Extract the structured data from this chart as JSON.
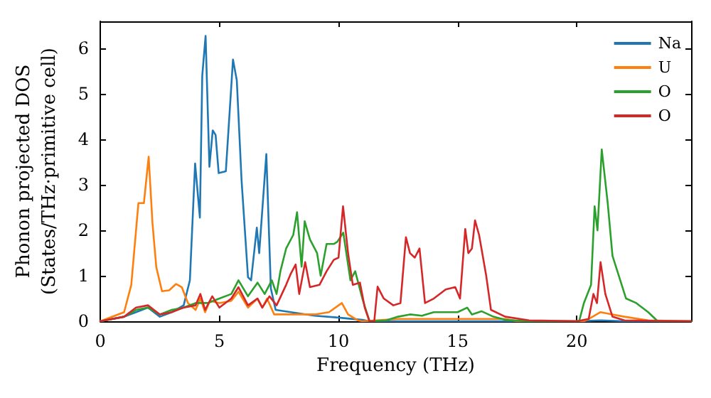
{
  "chart_data": {
    "type": "line",
    "xlabel": "Frequency (THz)",
    "ylabel": "Phonon projected DOS\n(States/THz·primitive cell)",
    "xlim": [
      0,
      24.8
    ],
    "xticks": [
      0,
      5,
      10,
      15,
      20
    ],
    "ylim": [
      0,
      6.6
    ],
    "yticks": [
      0,
      1,
      2,
      3,
      4,
      5,
      6
    ],
    "grid": false,
    "legend": "top right",
    "marker": "none",
    "line_style": "solid",
    "series": [
      {
        "name": "Na",
        "color": "#1f77b4",
        "x": [
          0,
          1,
          1.5,
          2,
          2.5,
          3,
          3.5,
          3.76,
          3.98,
          4.18,
          4.28,
          4.42,
          4.58,
          4.72,
          4.84,
          4.97,
          5.27,
          5.57,
          5.73,
          5.93,
          6.2,
          6.33,
          6.57,
          6.67,
          6.97,
          7.16,
          7.36,
          8,
          9,
          10,
          11,
          11.3,
          20,
          21,
          22,
          24.8
        ],
        "values": [
          0,
          0.1,
          0.2,
          0.3,
          0.1,
          0.2,
          0.35,
          0.9,
          3.47,
          2.28,
          5.4,
          6.28,
          3.4,
          4.2,
          4.1,
          3.26,
          3.3,
          5.76,
          5.3,
          3.1,
          0.97,
          0.9,
          2.06,
          1.5,
          3.68,
          0.72,
          0.25,
          0.2,
          0.12,
          0.08,
          0.03,
          0,
          0,
          0.02,
          0,
          0
        ]
      },
      {
        "name": "U",
        "color": "#ff7f0e",
        "x": [
          0,
          1,
          1.3,
          1.6,
          1.83,
          2.03,
          2.19,
          2.35,
          2.59,
          2.89,
          3.18,
          3.42,
          3.68,
          4,
          4.2,
          4.4,
          4.6,
          5,
          5.5,
          5.8,
          6.2,
          6.6,
          6.8,
          7,
          7.3,
          8,
          9,
          9.6,
          10.14,
          10.4,
          10.8,
          11,
          12.5,
          17,
          17.5,
          20.3,
          20.5,
          21,
          21.5,
          22,
          23,
          24.8
        ],
        "values": [
          0,
          0.2,
          0.8,
          2.6,
          2.6,
          3.62,
          2.16,
          1.19,
          0.66,
          0.68,
          0.82,
          0.75,
          0.4,
          0.25,
          0.5,
          0.2,
          0.45,
          0.4,
          0.45,
          0.65,
          0.3,
          0.5,
          0.3,
          0.5,
          0.15,
          0.15,
          0.15,
          0.2,
          0.4,
          0.15,
          0.02,
          0,
          0.05,
          0.05,
          0,
          0,
          0.05,
          0.2,
          0.15,
          0.1,
          0.02,
          0
        ]
      },
      {
        "name": "O",
        "color": "#2ca02c",
        "x": [
          0,
          1,
          1.5,
          2,
          2.5,
          3,
          3.5,
          4,
          4.5,
          5,
          5.5,
          5.8,
          6.2,
          6.6,
          6.9,
          7.2,
          7.4,
          7.56,
          7.8,
          8.1,
          8.26,
          8.45,
          8.58,
          8.8,
          9.1,
          9.25,
          9.5,
          9.8,
          9.95,
          10.2,
          10.5,
          10.7,
          11,
          11.3,
          12,
          12.5,
          13,
          13.5,
          14,
          15,
          15.4,
          15.6,
          16,
          16.5,
          17,
          18,
          20.1,
          20.3,
          20.6,
          20.75,
          20.87,
          21.05,
          21.3,
          21.5,
          22.07,
          22.5,
          23,
          23.4,
          24.8
        ],
        "values": [
          0,
          0.1,
          0.25,
          0.3,
          0.15,
          0.25,
          0.3,
          0.4,
          0.4,
          0.5,
          0.6,
          0.9,
          0.55,
          0.85,
          0.6,
          0.9,
          0.6,
          1.1,
          1.6,
          1.9,
          2.4,
          1.2,
          2.2,
          1.8,
          1.5,
          1,
          1.7,
          1.7,
          1.75,
          1.95,
          0.9,
          1.1,
          0.5,
          0,
          0.02,
          0.1,
          0.15,
          0.12,
          0.2,
          0.2,
          0.3,
          0.15,
          0.22,
          0.1,
          0.03,
          0,
          0,
          0.4,
          0.8,
          2.53,
          2,
          3.78,
          2.6,
          1.44,
          0.5,
          0.4,
          0.2,
          0,
          0
        ]
      },
      {
        "name": "O",
        "color": "#d62728",
        "x": [
          0,
          1,
          1.5,
          2,
          2.5,
          3,
          3.5,
          4,
          4.2,
          4.4,
          4.7,
          5,
          5.5,
          5.8,
          6.2,
          6.6,
          6.8,
          7.1,
          7.4,
          7.8,
          8,
          8.2,
          8.35,
          8.6,
          8.8,
          9.2,
          9.5,
          9.8,
          10,
          10.19,
          10.4,
          10.6,
          10.9,
          11.1,
          11.3,
          11.5,
          11.64,
          11.9,
          12.3,
          12.6,
          12.83,
          13,
          13.2,
          13.4,
          13.63,
          14,
          14.5,
          14.9,
          15.1,
          15.32,
          15.45,
          15.6,
          15.73,
          15.9,
          16.2,
          16.4,
          17,
          18,
          20,
          20.5,
          20.7,
          20.85,
          21,
          21.2,
          21.5,
          22,
          24.8
        ],
        "values": [
          0,
          0.1,
          0.3,
          0.35,
          0.15,
          0.2,
          0.3,
          0.35,
          0.6,
          0.25,
          0.55,
          0.3,
          0.5,
          0.75,
          0.35,
          0.5,
          0.3,
          0.55,
          0.35,
          0.8,
          1.05,
          1.25,
          0.6,
          1.3,
          0.75,
          0.8,
          1.1,
          1.35,
          1.4,
          2.53,
          1.5,
          0.8,
          0.85,
          0.3,
          0,
          0,
          0.76,
          0.5,
          0.35,
          0.4,
          1.85,
          1.5,
          1.4,
          1.6,
          0.4,
          0.5,
          0.7,
          0.75,
          0.5,
          2.03,
          1.5,
          1.6,
          2.22,
          1.9,
          1,
          0.25,
          0.1,
          0.02,
          0,
          0.05,
          0.6,
          0.4,
          1.3,
          0.6,
          0.1,
          0.02,
          0
        ]
      }
    ]
  }
}
